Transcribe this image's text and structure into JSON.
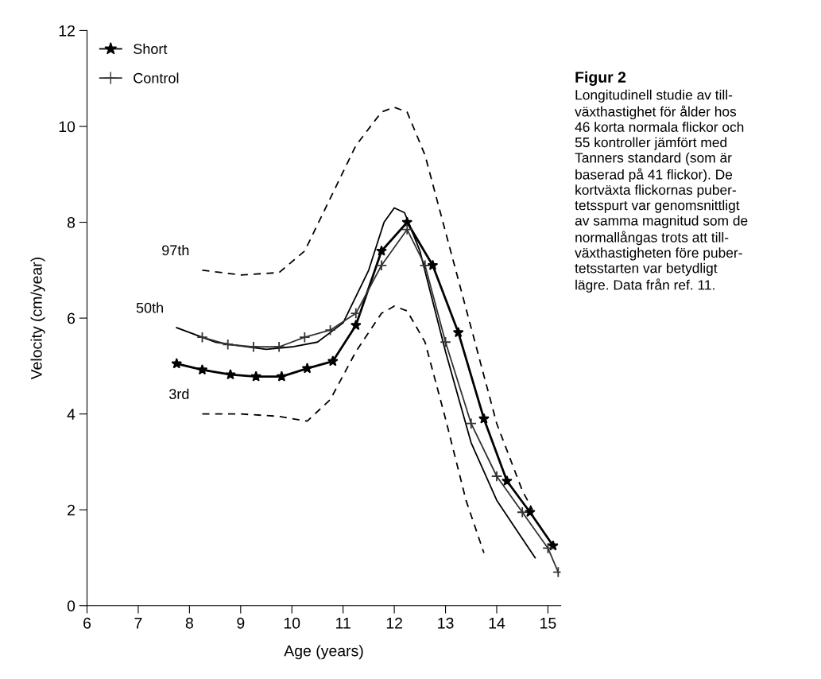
{
  "chart_data": {
    "type": "line",
    "title": "Figur 2",
    "annotations": [
      "Longitudinell studie av till-\nväxthastighet för ålder hos\n46 korta normala flickor och\n55 kontroller jämfört med\nTanners standard (som är\nbaserad på 41 flickor). De\nkortväxta flickornas puber-\ntetsspurt var genomsnittligt\nav samma magnitud som de\nnormallångas trots att till-\nväxthastigheten före puber-\ntetsstarten var betydligt\nlägre. Data från ref. 11."
    ],
    "xlabel": "Age (years)",
    "ylabel": "Velocity (cm/year)",
    "xlim": [
      6,
      15.25
    ],
    "ylim": [
      0,
      12
    ],
    "xticks": [
      6,
      7,
      8,
      9,
      10,
      11,
      12,
      13,
      14,
      15
    ],
    "yticks": [
      0,
      2,
      4,
      6,
      8,
      10,
      12
    ],
    "grid": false,
    "legend": "top left",
    "series": [
      {
        "name": "97th",
        "color": "#000000",
        "line_style": "dashed",
        "marker": "none",
        "x": [
          8.25,
          9,
          9.75,
          10.25,
          10.75,
          11.25,
          11.75,
          12.0,
          12.25,
          12.6,
          13,
          13.5,
          14,
          14.5,
          14.7
        ],
        "values": [
          7.0,
          6.9,
          6.95,
          7.4,
          8.5,
          9.6,
          10.3,
          10.4,
          10.3,
          9.4,
          7.8,
          5.8,
          3.8,
          2.4,
          2.0
        ]
      },
      {
        "name": "50th",
        "color": "#000000",
        "line_style": "solid",
        "marker": "none",
        "x": [
          7.75,
          8.5,
          9,
          9.5,
          10,
          10.5,
          11,
          11.5,
          11.8,
          12.0,
          12.2,
          12.5,
          13,
          13.5,
          14,
          14.5,
          14.75
        ],
        "values": [
          5.8,
          5.5,
          5.42,
          5.35,
          5.4,
          5.5,
          5.9,
          7.0,
          8.0,
          8.3,
          8.2,
          7.4,
          5.3,
          3.4,
          2.2,
          1.4,
          1.0
        ]
      },
      {
        "name": "3rd",
        "color": "#000000",
        "line_style": "dashed",
        "marker": "none",
        "x": [
          8.25,
          9,
          9.75,
          10.3,
          10.75,
          11.25,
          11.75,
          12.0,
          12.25,
          12.6,
          13,
          13.4,
          13.75
        ],
        "values": [
          4.0,
          4.0,
          3.95,
          3.85,
          4.3,
          5.3,
          6.1,
          6.25,
          6.15,
          5.5,
          3.9,
          2.2,
          1.1
        ]
      },
      {
        "name": "Short",
        "color": "#000000",
        "line_style": "solid",
        "marker": "star",
        "x": [
          7.75,
          8.25,
          8.8,
          9.3,
          9.8,
          10.3,
          10.8,
          11.25,
          11.75,
          12.25,
          12.75,
          13.25,
          13.75,
          14.2,
          14.65,
          15.1
        ],
        "values": [
          5.05,
          4.92,
          4.82,
          4.78,
          4.78,
          4.95,
          5.1,
          5.85,
          7.4,
          8.0,
          7.1,
          5.7,
          3.9,
          2.6,
          1.95,
          1.25
        ]
      },
      {
        "name": "Control",
        "color": "#333333",
        "line_style": "solid",
        "marker": "cross",
        "x": [
          8.25,
          8.75,
          9.25,
          9.75,
          10.25,
          10.75,
          11.25,
          11.75,
          12.25,
          12.6,
          13.0,
          13.5,
          14.0,
          14.5,
          15.0,
          15.2
        ],
        "values": [
          5.6,
          5.45,
          5.4,
          5.4,
          5.6,
          5.75,
          6.1,
          7.1,
          7.85,
          7.1,
          5.5,
          3.8,
          2.7,
          1.95,
          1.2,
          0.7
        ]
      }
    ]
  }
}
